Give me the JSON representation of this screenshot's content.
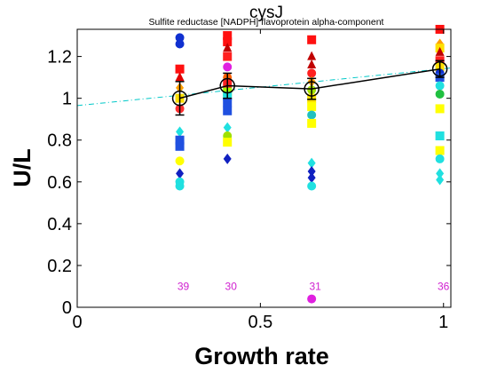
{
  "chart_data": {
    "type": "scatter",
    "title": "cysJ",
    "subtitle": "Sulfite reductase [NADPH] flavoprotein alpha-component",
    "xlabel": "Growth rate",
    "ylabel": "U/L",
    "xlim": [
      0,
      1.02
    ],
    "ylim": [
      0,
      1.33
    ],
    "x_ticks": [
      0,
      0.5,
      1
    ],
    "x_tick_labels": [
      "0",
      "0.5",
      "1"
    ],
    "y_ticks": [
      0,
      0.2,
      0.4,
      0.6,
      0.8,
      1,
      1.2
    ],
    "y_tick_labels": [
      "0",
      "0.2",
      "0.4",
      "0.6",
      "0.8",
      "1",
      "1.2"
    ],
    "grid": false,
    "mean_series": {
      "x": [
        0.28,
        0.41,
        0.64,
        0.99
      ],
      "y": [
        1.0,
        1.06,
        1.045,
        1.14
      ],
      "err": [
        0.08,
        0.06,
        0.05,
        0.04
      ],
      "color": "#000000"
    },
    "trend_line": {
      "x": [
        0,
        1.02
      ],
      "y": [
        0.965,
        1.145
      ],
      "color": "#00c8c8",
      "style": "dash-dot"
    },
    "counts": {
      "x": [
        0.28,
        0.41,
        0.64,
        0.99
      ],
      "labels": [
        "39",
        "30",
        "31",
        "36"
      ],
      "y": 0.1,
      "color": "#d020d0"
    },
    "points": [
      {
        "x": 0.28,
        "y": 1.29,
        "color": "#1030d0",
        "marker": "circle"
      },
      {
        "x": 0.28,
        "y": 1.26,
        "color": "#1030d0",
        "marker": "circle"
      },
      {
        "x": 0.28,
        "y": 1.14,
        "color": "#ff1010",
        "marker": "square"
      },
      {
        "x": 0.28,
        "y": 1.1,
        "color": "#e00000",
        "marker": "triangle"
      },
      {
        "x": 0.28,
        "y": 1.05,
        "color": "#ffa000",
        "marker": "diamond"
      },
      {
        "x": 0.28,
        "y": 1.0,
        "color": "#ffe000",
        "marker": "square"
      },
      {
        "x": 0.28,
        "y": 0.95,
        "color": "#ff3030",
        "marker": "circle"
      },
      {
        "x": 0.28,
        "y": 0.84,
        "color": "#20e0e0",
        "marker": "diamond"
      },
      {
        "x": 0.28,
        "y": 0.8,
        "color": "#2050e0",
        "marker": "square"
      },
      {
        "x": 0.28,
        "y": 0.77,
        "color": "#2050e0",
        "marker": "square"
      },
      {
        "x": 0.28,
        "y": 0.7,
        "color": "#ffff00",
        "marker": "circle"
      },
      {
        "x": 0.28,
        "y": 0.64,
        "color": "#1020c0",
        "marker": "diamond"
      },
      {
        "x": 0.28,
        "y": 0.6,
        "color": "#20e0e0",
        "marker": "circle"
      },
      {
        "x": 0.28,
        "y": 0.58,
        "color": "#20e0e0",
        "marker": "circle"
      },
      {
        "x": 0.41,
        "y": 1.3,
        "color": "#ff1010",
        "marker": "square"
      },
      {
        "x": 0.41,
        "y": 1.27,
        "color": "#ff1010",
        "marker": "square"
      },
      {
        "x": 0.41,
        "y": 1.24,
        "color": "#c00000",
        "marker": "triangle"
      },
      {
        "x": 0.41,
        "y": 1.2,
        "color": "#ff2020",
        "marker": "square"
      },
      {
        "x": 0.41,
        "y": 1.15,
        "color": "#e020e0",
        "marker": "circle"
      },
      {
        "x": 0.41,
        "y": 1.1,
        "color": "#ff6000",
        "marker": "circle"
      },
      {
        "x": 0.41,
        "y": 1.07,
        "color": "#ff2020",
        "marker": "square"
      },
      {
        "x": 0.41,
        "y": 1.03,
        "color": "#a0ff00",
        "marker": "square"
      },
      {
        "x": 0.41,
        "y": 1.01,
        "color": "#20e0e0",
        "marker": "square"
      },
      {
        "x": 0.41,
        "y": 0.98,
        "color": "#2050e0",
        "marker": "square"
      },
      {
        "x": 0.41,
        "y": 0.94,
        "color": "#2050e0",
        "marker": "square"
      },
      {
        "x": 0.41,
        "y": 0.86,
        "color": "#20e0e0",
        "marker": "diamond"
      },
      {
        "x": 0.41,
        "y": 0.82,
        "color": "#a0e000",
        "marker": "circle"
      },
      {
        "x": 0.41,
        "y": 0.79,
        "color": "#ffff00",
        "marker": "square"
      },
      {
        "x": 0.41,
        "y": 0.71,
        "color": "#1020c0",
        "marker": "diamond"
      },
      {
        "x": 0.64,
        "y": 1.28,
        "color": "#ff1010",
        "marker": "square"
      },
      {
        "x": 0.64,
        "y": 1.2,
        "color": "#c00000",
        "marker": "triangle"
      },
      {
        "x": 0.64,
        "y": 1.16,
        "color": "#c00000",
        "marker": "triangle"
      },
      {
        "x": 0.64,
        "y": 1.12,
        "color": "#ff2020",
        "marker": "circle"
      },
      {
        "x": 0.64,
        "y": 1.08,
        "color": "#ffa000",
        "marker": "diamond"
      },
      {
        "x": 0.64,
        "y": 1.04,
        "color": "#a0e000",
        "marker": "circle"
      },
      {
        "x": 0.64,
        "y": 1.0,
        "color": "#ffe000",
        "marker": "square"
      },
      {
        "x": 0.64,
        "y": 0.96,
        "color": "#ffff00",
        "marker": "square"
      },
      {
        "x": 0.64,
        "y": 0.92,
        "color": "#20c0c0",
        "marker": "circle"
      },
      {
        "x": 0.64,
        "y": 0.88,
        "color": "#ffff00",
        "marker": "square"
      },
      {
        "x": 0.64,
        "y": 0.69,
        "color": "#20e0e0",
        "marker": "diamond"
      },
      {
        "x": 0.64,
        "y": 0.65,
        "color": "#1020c0",
        "marker": "diamond"
      },
      {
        "x": 0.64,
        "y": 0.62,
        "color": "#1020c0",
        "marker": "diamond"
      },
      {
        "x": 0.64,
        "y": 0.58,
        "color": "#20e0e0",
        "marker": "circle"
      },
      {
        "x": 0.64,
        "y": 0.04,
        "color": "#e020e0",
        "marker": "circle"
      },
      {
        "x": 0.99,
        "y": 1.33,
        "color": "#ff1010",
        "marker": "square"
      },
      {
        "x": 0.99,
        "y": 1.26,
        "color": "#ffa000",
        "marker": "diamond"
      },
      {
        "x": 0.99,
        "y": 1.24,
        "color": "#ffe000",
        "marker": "square"
      },
      {
        "x": 0.99,
        "y": 1.22,
        "color": "#c00000",
        "marker": "triangle"
      },
      {
        "x": 0.99,
        "y": 1.18,
        "color": "#ff2020",
        "marker": "square"
      },
      {
        "x": 0.99,
        "y": 1.15,
        "color": "#ffe000",
        "marker": "square"
      },
      {
        "x": 0.99,
        "y": 1.12,
        "color": "#1030d0",
        "marker": "circle"
      },
      {
        "x": 0.99,
        "y": 1.1,
        "color": "#2050e0",
        "marker": "square"
      },
      {
        "x": 0.99,
        "y": 1.06,
        "color": "#20e0e0",
        "marker": "circle"
      },
      {
        "x": 0.99,
        "y": 1.02,
        "color": "#20c040",
        "marker": "circle"
      },
      {
        "x": 0.99,
        "y": 0.95,
        "color": "#ffff00",
        "marker": "square"
      },
      {
        "x": 0.99,
        "y": 0.82,
        "color": "#20e0e0",
        "marker": "square"
      },
      {
        "x": 0.99,
        "y": 0.75,
        "color": "#ffff00",
        "marker": "square"
      },
      {
        "x": 0.99,
        "y": 0.71,
        "color": "#20e0e0",
        "marker": "circle"
      },
      {
        "x": 0.99,
        "y": 0.64,
        "color": "#20e0e0",
        "marker": "diamond"
      },
      {
        "x": 0.99,
        "y": 0.61,
        "color": "#20e0e0",
        "marker": "diamond"
      }
    ]
  }
}
